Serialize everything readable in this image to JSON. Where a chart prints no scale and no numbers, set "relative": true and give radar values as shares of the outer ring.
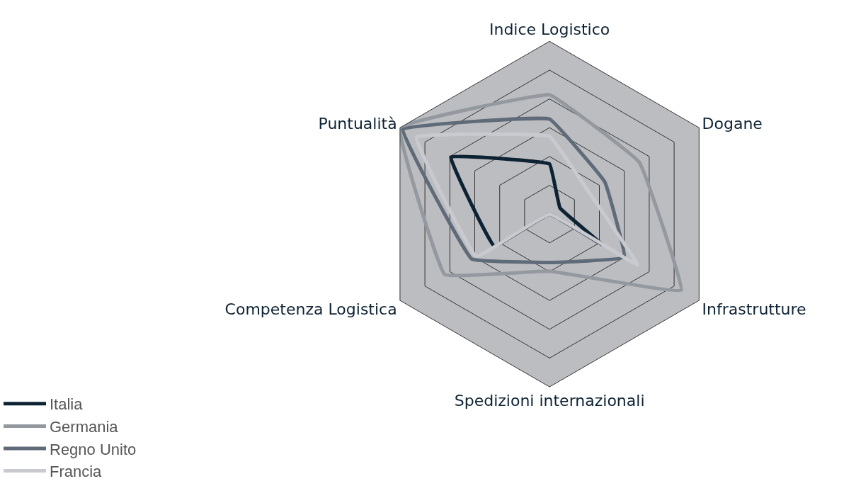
{
  "chart_data": {
    "type": "radar",
    "relative": true,
    "legend": "bottom left",
    "line_style": "solid",
    "marker": "none",
    "categories": [
      "Indice Logistico",
      "Dogane",
      "Infrastrutture",
      "Spedizioni internazionali",
      "Competenza Logistica",
      "Puntualità"
    ],
    "series": [
      {
        "name": "Italia",
        "color": "#0d2233",
        "values": [
          0.29,
          0.07,
          0.35,
          0,
          0.37,
          0.66
        ]
      },
      {
        "name": "Germania",
        "color": "#9499a0",
        "values": [
          0.69,
          0.6,
          0.88,
          0.33,
          0.7,
          1.0
        ]
      },
      {
        "name": "Regno Unito",
        "color": "#5f6b78",
        "values": [
          0.55,
          0.37,
          0.5,
          0.28,
          0.52,
          0.98
        ]
      },
      {
        "name": "Francia",
        "color": "#c8cacf",
        "values": [
          0.45,
          0.26,
          0.59,
          0,
          0.49,
          0.89
        ]
      }
    ]
  }
}
